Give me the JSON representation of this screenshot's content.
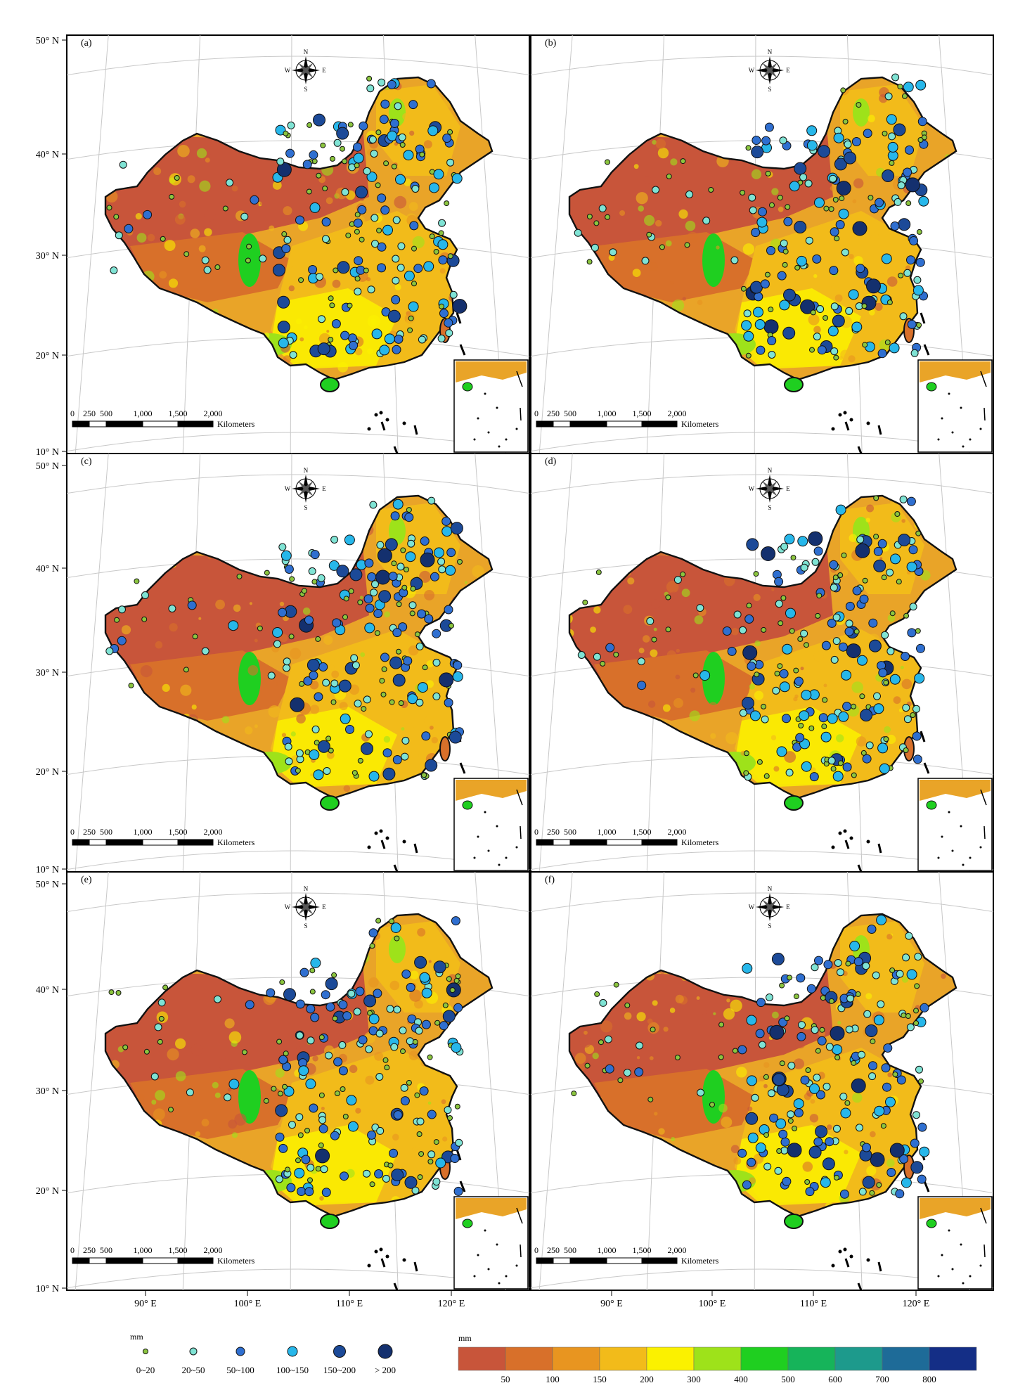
{
  "panels": [
    {
      "label": "(a)"
    },
    {
      "label": "(b)"
    },
    {
      "label": "(c)"
    },
    {
      "label": "(d)"
    },
    {
      "label": "(e)"
    },
    {
      "label": "(f)"
    }
  ],
  "axes": {
    "latitude_labels": [
      "50° N",
      "40° N",
      "30° N",
      "20° N",
      "10° N"
    ],
    "longitude_labels": [
      "90° E",
      "100° E",
      "110° E",
      "120° E"
    ]
  },
  "compass": {
    "n": "N",
    "s": "S",
    "e": "E",
    "w": "W"
  },
  "scale_bar": {
    "ticks": [
      "0",
      "250",
      "500",
      "1,000",
      "1,500",
      "2,000"
    ],
    "unit": "Kilometers"
  },
  "station_legend": {
    "unit": "mm",
    "classes": [
      {
        "label": "0~20",
        "color": "#8bc53f"
      },
      {
        "label": "20~50",
        "color": "#7fe3d4"
      },
      {
        "label": "50~100",
        "color": "#2f6fd0"
      },
      {
        "label": "100~150",
        "color": "#27b7ea"
      },
      {
        "label": "150~200",
        "color": "#1c4a98"
      },
      {
        "label": "> 200",
        "color": "#14306e"
      }
    ]
  },
  "raster_legend": {
    "unit": "mm",
    "colors": [
      "#c8553a",
      "#d8702a",
      "#e89520",
      "#f2bb1a",
      "#fbf100",
      "#9ee21a",
      "#1fcf20",
      "#16b45a",
      "#1d9a8c",
      "#1e6b98",
      "#142e86"
    ],
    "labels": [
      "50",
      "100",
      "150",
      "200",
      "300",
      "400",
      "500",
      "600",
      "700",
      "800"
    ]
  }
}
